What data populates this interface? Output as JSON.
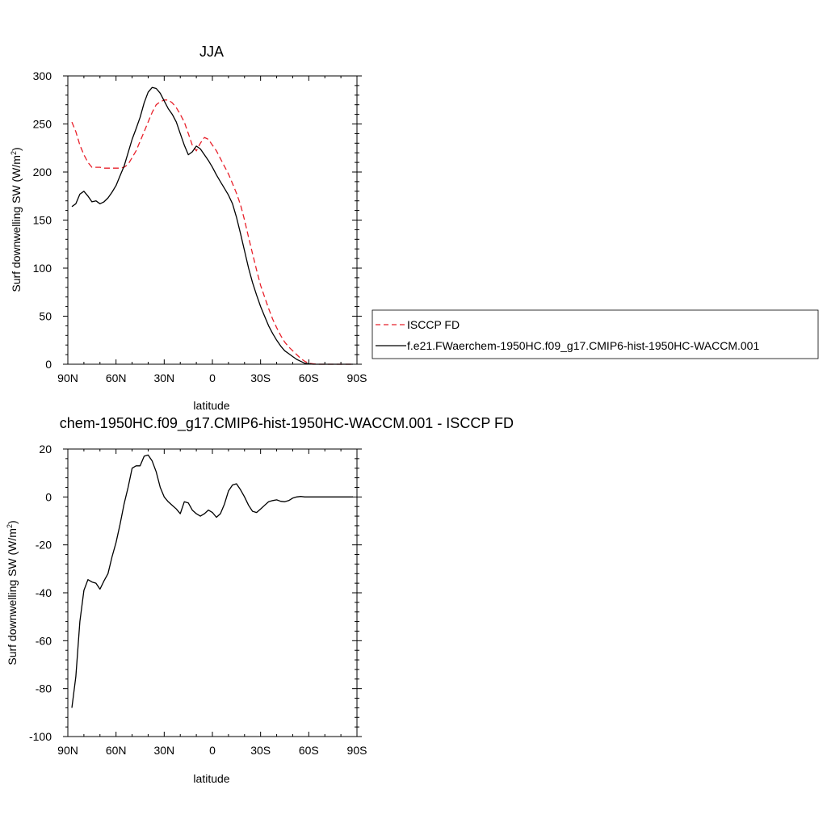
{
  "chart_data": [
    {
      "type": "line",
      "title": "JJA",
      "xlabel": "latitude",
      "ylabel": "Surf downwelling SW (W/m²)",
      "ylabel_parts": {
        "main": "Surf downwelling SW (W/m",
        "sup": "2",
        "close": ")"
      },
      "xlim": [
        90,
        -90
      ],
      "ylim": [
        0,
        300
      ],
      "x_ticks": [
        90,
        60,
        30,
        0,
        -30,
        -60,
        -90
      ],
      "x_tick_labels": [
        "90N",
        "60N",
        "30N",
        "0",
        "30S",
        "60S",
        "90S"
      ],
      "y_ticks": [
        0,
        50,
        100,
        150,
        200,
        250,
        300
      ],
      "y_tick_labels": [
        "0",
        "50",
        "100",
        "150",
        "200",
        "250",
        "300"
      ],
      "grid": false,
      "legend_position": "right",
      "series": [
        {
          "name": "ISCCP FD",
          "color": "#e8202a",
          "dash": "dashed",
          "x": [
            87.5,
            85,
            82.5,
            80,
            77.5,
            75,
            72.5,
            70,
            67.5,
            65,
            62.5,
            60,
            57.5,
            55,
            52.5,
            50,
            47.5,
            45,
            42.5,
            40,
            37.5,
            35,
            32.5,
            30,
            27.5,
            25,
            22.5,
            20,
            17.5,
            15,
            12.5,
            10,
            7.5,
            5,
            2.5,
            0,
            -2.5,
            -5,
            -7.5,
            -10,
            -12.5,
            -15,
            -17.5,
            -20,
            -22.5,
            -25,
            -27.5,
            -30,
            -32.5,
            -35,
            -37.5,
            -40,
            -42.5,
            -45,
            -47.5,
            -50,
            -52.5,
            -55,
            -57.5,
            -60,
            -62.5,
            -65,
            -67.5,
            -70,
            -72.5,
            -75,
            -77.5,
            -80,
            -82.5,
            -85,
            -87.5
          ],
          "values": [
            252,
            242,
            228,
            218,
            210,
            205,
            205,
            205,
            204,
            204,
            204,
            204,
            204,
            205,
            208,
            215,
            222,
            232,
            242,
            252,
            262,
            270,
            273,
            275,
            275,
            272,
            267,
            260,
            252,
            240,
            228,
            222,
            230,
            236,
            234,
            228,
            222,
            214,
            206,
            198,
            188,
            178,
            166,
            150,
            132,
            115,
            98,
            82,
            70,
            58,
            47,
            38,
            30,
            23,
            18,
            14,
            10,
            6,
            3,
            1,
            0.5,
            0,
            0,
            0,
            0,
            0,
            0,
            0,
            0,
            0,
            0
          ]
        },
        {
          "name": "f.e21.FWaerchem-1950HC.f09_g17.CMIP6-hist-1950HC-WACCM.001",
          "color": "#000000",
          "dash": "solid",
          "x": [
            87.5,
            85,
            82.5,
            80,
            77.5,
            75,
            72.5,
            70,
            67.5,
            65,
            62.5,
            60,
            57.5,
            55,
            52.5,
            50,
            47.5,
            45,
            42.5,
            40,
            37.5,
            35,
            32.5,
            30,
            27.5,
            25,
            22.5,
            20,
            17.5,
            15,
            12.5,
            10,
            7.5,
            5,
            2.5,
            0,
            -2.5,
            -5,
            -7.5,
            -10,
            -12.5,
            -15,
            -17.5,
            -20,
            -22.5,
            -25,
            -27.5,
            -30,
            -32.5,
            -35,
            -37.5,
            -40,
            -42.5,
            -45,
            -47.5,
            -50,
            -52.5,
            -55,
            -57.5,
            -60,
            -62.5,
            -65,
            -67.5,
            -70,
            -72.5,
            -75,
            -77.5,
            -80,
            -82.5,
            -85,
            -87.5
          ],
          "values": [
            164,
            167,
            177,
            180,
            175,
            169,
            170,
            167,
            169,
            173,
            179,
            186,
            196,
            206,
            220,
            234,
            245,
            257,
            272,
            283,
            288,
            287,
            282,
            274,
            266,
            260,
            252,
            240,
            228,
            218,
            221,
            227,
            224,
            218,
            212,
            205,
            197,
            190,
            183,
            176,
            167,
            153,
            136,
            118,
            100,
            85,
            72,
            60,
            50,
            40,
            32,
            25,
            19,
            14,
            11,
            8,
            5,
            3,
            1,
            0.5,
            0,
            0,
            0,
            0,
            0,
            0,
            0,
            0,
            0,
            0,
            0
          ]
        }
      ]
    },
    {
      "type": "line",
      "title": "chem-1950HC.f09_g17.CMIP6-hist-1950HC-WACCM.001 - ISCCP FD",
      "xlabel": "latitude",
      "ylabel": "Surf downwelling SW (W/m²)",
      "ylabel_parts": {
        "main": "Surf downwelling SW (W/m",
        "sup": "2",
        "close": ")"
      },
      "xlim": [
        90,
        -90
      ],
      "ylim": [
        -100,
        20
      ],
      "x_ticks": [
        90,
        60,
        30,
        0,
        -30,
        -60,
        -90
      ],
      "x_tick_labels": [
        "90N",
        "60N",
        "30N",
        "0",
        "30S",
        "60S",
        "90S"
      ],
      "y_ticks": [
        -100,
        -80,
        -60,
        -40,
        -20,
        0,
        20
      ],
      "y_tick_labels": [
        "-100",
        "-80",
        "-60",
        "-40",
        "-20",
        "0",
        "20"
      ],
      "grid": false,
      "series": [
        {
          "color": "#000000",
          "dash": "solid",
          "x": [
            87.5,
            85,
            82.5,
            80,
            77.5,
            75,
            72.5,
            70,
            67.5,
            65,
            62.5,
            60,
            57.5,
            55,
            52.5,
            50,
            47.5,
            45,
            42.5,
            40,
            37.5,
            35,
            32.5,
            30,
            27.5,
            25,
            22.5,
            20,
            17.5,
            15,
            12.5,
            10,
            7.5,
            5,
            2.5,
            0,
            -2.5,
            -5,
            -7.5,
            -10,
            -12.5,
            -15,
            -17.5,
            -20,
            -22.5,
            -25,
            -27.5,
            -30,
            -32.5,
            -35,
            -37.5,
            -40,
            -42.5,
            -45,
            -47.5,
            -50,
            -52.5,
            -55,
            -57.5,
            -60,
            -62.5,
            -65,
            -67.5,
            -70,
            -72.5,
            -75,
            -77.5,
            -80,
            -82.5,
            -85,
            -87.5
          ],
          "values": [
            -88,
            -75,
            -52,
            -39,
            -34.5,
            -35.5,
            -36,
            -38.5,
            -35,
            -32,
            -25,
            -19,
            -11.5,
            -3,
            4,
            12,
            13,
            13,
            17,
            17.5,
            15,
            10.5,
            4,
            0,
            -2,
            -3.5,
            -5,
            -7,
            -2,
            -2.5,
            -5.5,
            -7,
            -8,
            -7,
            -5.5,
            -6.5,
            -8.5,
            -7,
            -3,
            2.5,
            5,
            5.5,
            3,
            0,
            -3.5,
            -6,
            -6.5,
            -5,
            -3.5,
            -2,
            -1.5,
            -1.2,
            -1.8,
            -2,
            -1.5,
            -0.5,
            0,
            0.2,
            0,
            0,
            0,
            0,
            0,
            0,
            0,
            0,
            0,
            0,
            0,
            0,
            0
          ]
        }
      ]
    }
  ]
}
